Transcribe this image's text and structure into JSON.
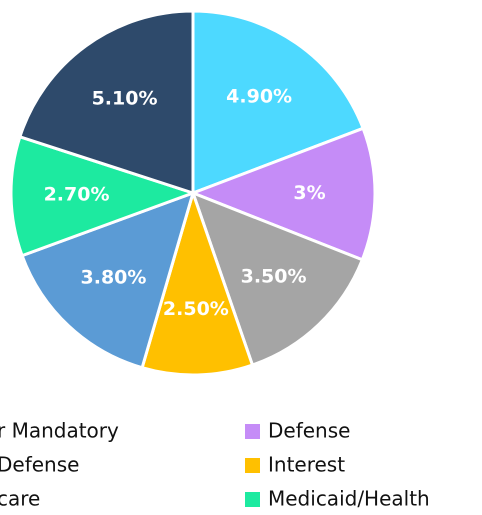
{
  "chart_data": {
    "type": "pie",
    "categories": [
      "r Mandatory",
      "Defense",
      "Defense",
      "Interest",
      "care",
      "Medicaid/Health",
      null
    ],
    "values": [
      4.9,
      3,
      3.5,
      2.5,
      3.8,
      2.7,
      5.1
    ],
    "value_labels": [
      "4.90%",
      "3%",
      "3.50%",
      "2.50%",
      "3.80%",
      "2.70%",
      "5.10%"
    ],
    "colors": [
      "#4dd9ff",
      "#c58cf7",
      "#a5a5a5",
      "#ffc000",
      "#5b9bd5",
      "#1deaa0",
      "#2e4a6b"
    ]
  }
}
